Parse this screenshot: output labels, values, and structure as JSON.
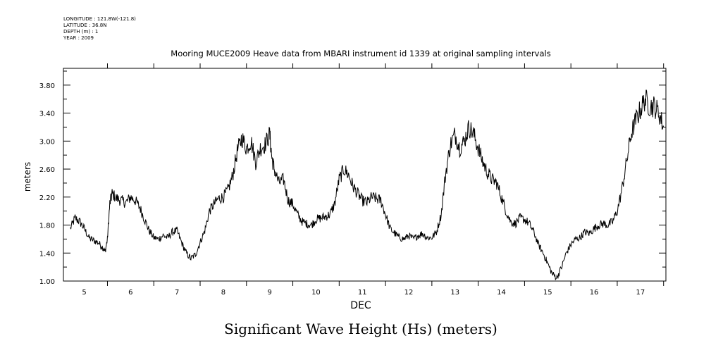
{
  "header": {
    "longitude": "LONGITUDE : 121.8W(-121.8)",
    "latitude": "LATITUDE : 36.8N",
    "depth": "DEPTH (m) : 1",
    "year": "YEAR : 2009"
  },
  "chart_data": {
    "type": "line",
    "title": "Mooring MUCE2009 Heave data from MBARI instrument id 1339 at original sampling intervals",
    "caption": "Significant Wave Height (Hs) (meters)",
    "xlabel": "DEC",
    "ylabel": "meters",
    "xlim": [
      4.55,
      17.55
    ],
    "ylim": [
      1.0,
      4.04
    ],
    "x_ticks": [
      5,
      6,
      7,
      8,
      9,
      10,
      11,
      12,
      13,
      14,
      15,
      16,
      17
    ],
    "x_tick_labels": [
      "5",
      "6",
      "7",
      "8",
      "9",
      "10",
      "11",
      "12",
      "13",
      "14",
      "15",
      "16",
      "17"
    ],
    "y_ticks": [
      1.0,
      1.4,
      1.8,
      2.2,
      2.6,
      3.0,
      3.4,
      3.8
    ],
    "y_tick_labels": [
      "1.00",
      "1.40",
      "1.80",
      "2.20",
      "2.60",
      "3.00",
      "3.40",
      "3.80"
    ],
    "grid": false,
    "series": [
      {
        "color": "#000000",
        "x": [
          4.7,
          4.8,
          4.9,
          5.0,
          5.1,
          5.2,
          5.3,
          5.4,
          5.45,
          5.5,
          5.55,
          5.6,
          5.7,
          5.8,
          5.9,
          6.0,
          6.1,
          6.2,
          6.3,
          6.4,
          6.5,
          6.6,
          6.7,
          6.8,
          6.9,
          7.0,
          7.1,
          7.2,
          7.3,
          7.4,
          7.5,
          7.6,
          7.7,
          7.8,
          7.9,
          8.0,
          8.1,
          8.2,
          8.3,
          8.4,
          8.5,
          8.6,
          8.7,
          8.8,
          8.9,
          9.0,
          9.05,
          9.1,
          9.2,
          9.3,
          9.4,
          9.5,
          9.6,
          9.7,
          9.8,
          9.9,
          10.0,
          10.1,
          10.2,
          10.3,
          10.4,
          10.5,
          10.6,
          10.7,
          10.8,
          10.9,
          11.0,
          11.1,
          11.2,
          11.3,
          11.4,
          11.5,
          11.6,
          11.7,
          11.8,
          11.9,
          12.0,
          12.1,
          12.2,
          12.3,
          12.4,
          12.5,
          12.6,
          12.7,
          12.8,
          12.9,
          13.0,
          13.1,
          13.2,
          13.3,
          13.4,
          13.5,
          13.6,
          13.7,
          13.8,
          13.9,
          14.0,
          14.1,
          14.2,
          14.3,
          14.4,
          14.5,
          14.6,
          14.7,
          14.8,
          14.9,
          15.0,
          15.1,
          15.2,
          15.3,
          15.4,
          15.5,
          15.6,
          15.7,
          15.8,
          15.9,
          16.0,
          16.1,
          16.2,
          16.3,
          16.4,
          16.5,
          16.6,
          16.7,
          16.8,
          16.9,
          17.0,
          17.1,
          17.2,
          17.3,
          17.4,
          17.5
        ],
        "y": [
          1.75,
          1.9,
          1.85,
          1.75,
          1.62,
          1.58,
          1.55,
          1.48,
          1.42,
          1.6,
          2.1,
          2.25,
          2.18,
          2.15,
          2.12,
          2.2,
          2.15,
          2.05,
          1.88,
          1.72,
          1.62,
          1.6,
          1.65,
          1.62,
          1.7,
          1.72,
          1.55,
          1.4,
          1.32,
          1.38,
          1.55,
          1.72,
          2.0,
          2.1,
          2.18,
          2.2,
          2.3,
          2.5,
          2.85,
          3.05,
          2.9,
          3.0,
          2.7,
          2.9,
          2.95,
          3.1,
          2.75,
          2.6,
          2.4,
          2.45,
          2.15,
          2.1,
          1.95,
          1.85,
          1.82,
          1.8,
          1.88,
          1.9,
          1.92,
          1.95,
          2.1,
          2.45,
          2.6,
          2.52,
          2.35,
          2.25,
          2.15,
          2.12,
          2.2,
          2.18,
          2.15,
          1.95,
          1.75,
          1.68,
          1.62,
          1.6,
          1.65,
          1.6,
          1.65,
          1.68,
          1.62,
          1.62,
          1.7,
          1.95,
          2.55,
          2.95,
          3.1,
          2.9,
          3.0,
          3.2,
          3.1,
          2.9,
          2.7,
          2.55,
          2.45,
          2.4,
          2.2,
          2.0,
          1.85,
          1.82,
          1.9,
          1.88,
          1.82,
          1.7,
          1.52,
          1.4,
          1.25,
          1.1,
          1.05,
          1.2,
          1.4,
          1.52,
          1.6,
          1.62,
          1.7,
          1.68,
          1.75,
          1.8,
          1.82,
          1.8,
          1.85,
          2.0,
          2.3,
          2.7,
          3.1,
          3.3,
          3.45,
          3.6,
          3.5,
          3.5,
          3.4,
          3.2
        ]
      }
    ]
  }
}
